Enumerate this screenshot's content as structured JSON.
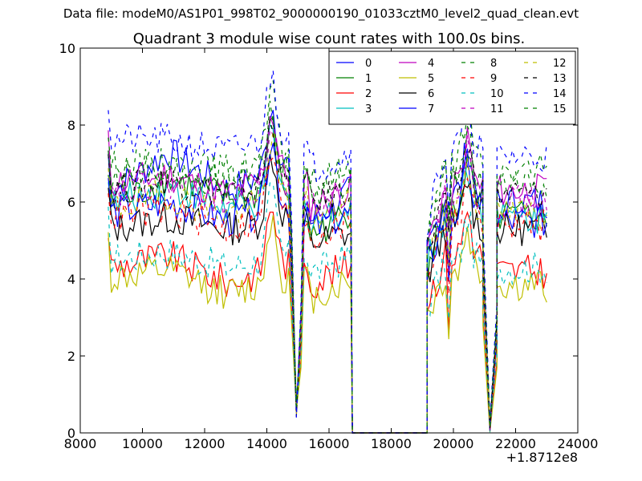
{
  "figure": {
    "suptitle": "Data file: modeM0/AS1P01_998T02_9000000190_01033cztM0_level2_quad_clean.evt",
    "title": "Quadrant 3 module wise count rates with 100.0s bins."
  },
  "chart_data": {
    "type": "line",
    "xlim": [
      8000,
      24000
    ],
    "ylim": [
      0,
      10
    ],
    "x_offset_label": "+1.8712e8",
    "xticks": [
      "8000",
      "10000",
      "12000",
      "14000",
      "16000",
      "18000",
      "20000",
      "22000",
      "24000"
    ],
    "yticks": [
      "0",
      "2",
      "4",
      "6",
      "8",
      "10"
    ],
    "grid": false,
    "legend": {
      "placement": "top-right",
      "columns": 4
    },
    "series": [
      {
        "name": "0",
        "color": "#0000ff",
        "dash": "solid",
        "levels": [
          6.2,
          7.3,
          6.3,
          7.0,
          5.4,
          6.3,
          6.2,
          6.0
        ]
      },
      {
        "name": "1",
        "color": "#008000",
        "dash": "solid",
        "levels": [
          5.8,
          6.6,
          6.1,
          6.3,
          5.0,
          5.8,
          5.8,
          5.6
        ]
      },
      {
        "name": "2",
        "color": "#ff0000",
        "dash": "solid",
        "levels": [
          4.3,
          4.6,
          3.9,
          4.4,
          3.8,
          4.4,
          4.6,
          4.2
        ]
      },
      {
        "name": "3",
        "color": "#00bfbf",
        "dash": "solid",
        "levels": [
          5.9,
          6.4,
          5.8,
          6.1,
          5.4,
          5.9,
          5.8,
          5.6
        ]
      },
      {
        "name": "4",
        "color": "#bf00bf",
        "dash": "solid",
        "levels": [
          6.5,
          6.7,
          6.2,
          6.8,
          5.8,
          6.4,
          6.4,
          6.3
        ]
      },
      {
        "name": "5",
        "color": "#bfbf00",
        "dash": "solid",
        "levels": [
          4.0,
          4.2,
          3.6,
          4.0,
          3.4,
          4.0,
          4.1,
          3.8
        ]
      },
      {
        "name": "6",
        "color": "#000000",
        "dash": "solid",
        "levels": [
          5.3,
          5.6,
          5.3,
          5.6,
          4.9,
          5.2,
          5.4,
          5.3
        ]
      },
      {
        "name": "7",
        "color": "#0000ff",
        "dash": "solid",
        "levels": [
          5.7,
          6.0,
          5.5,
          6.0,
          5.2,
          5.7,
          5.7,
          5.5
        ]
      },
      {
        "name": "8",
        "color": "#008000",
        "dash": "dashed",
        "levels": [
          6.9,
          7.0,
          6.8,
          7.2,
          6.3,
          7.0,
          7.0,
          6.8
        ]
      },
      {
        "name": "9",
        "color": "#ff0000",
        "dash": "dashed",
        "levels": [
          5.6,
          5.8,
          5.3,
          5.7,
          5.0,
          5.5,
          5.5,
          5.4
        ]
      },
      {
        "name": "10",
        "color": "#00bfbf",
        "dash": "dashed",
        "levels": [
          4.5,
          4.7,
          4.3,
          4.6,
          4.1,
          4.6,
          4.4,
          4.3
        ]
      },
      {
        "name": "11",
        "color": "#bf00bf",
        "dash": "dashed",
        "levels": [
          6.1,
          6.5,
          6.0,
          6.4,
          5.7,
          6.3,
          6.2,
          6.0
        ]
      },
      {
        "name": "12",
        "color": "#bfbf00",
        "dash": "dashed",
        "levels": [
          5.8,
          6.2,
          5.7,
          6.1,
          5.4,
          6.0,
          5.9,
          5.7
        ]
      },
      {
        "name": "13",
        "color": "#000000",
        "dash": "dashed",
        "levels": [
          6.3,
          6.6,
          6.2,
          6.5,
          5.9,
          6.4,
          6.3,
          6.2
        ]
      },
      {
        "name": "14",
        "color": "#0000ff",
        "dash": "dashed",
        "levels": [
          7.6,
          7.6,
          7.3,
          7.8,
          6.8,
          7.3,
          7.4,
          7.2
        ]
      },
      {
        "name": "15",
        "color": "#008000",
        "dash": "dashed",
        "levels": [
          6.7,
          6.9,
          6.5,
          6.9,
          6.1,
          6.6,
          6.6,
          6.5
        ]
      }
    ],
    "segments": [
      {
        "x": [
          8900,
          14700
        ],
        "profile": "baseline",
        "peak_near": 14150,
        "level_index": [
          0,
          1,
          2,
          3
        ]
      },
      {
        "x": [
          14800,
          15100
        ],
        "profile": "dip",
        "min": 0.4
      },
      {
        "x": [
          15200,
          16750
        ],
        "profile": "baseline",
        "level_index": [
          4,
          5
        ]
      },
      {
        "x": [
          16750,
          19150
        ],
        "profile": "zero",
        "value": 0
      },
      {
        "x": [
          19150,
          20950
        ],
        "profile": "rise",
        "level_index": [
          6,
          6
        ]
      },
      {
        "x": [
          20950,
          21400
        ],
        "profile": "dip",
        "min": 0
      },
      {
        "x": [
          21400,
          23000
        ],
        "profile": "baseline",
        "level_index": [
          7,
          7
        ]
      }
    ]
  }
}
